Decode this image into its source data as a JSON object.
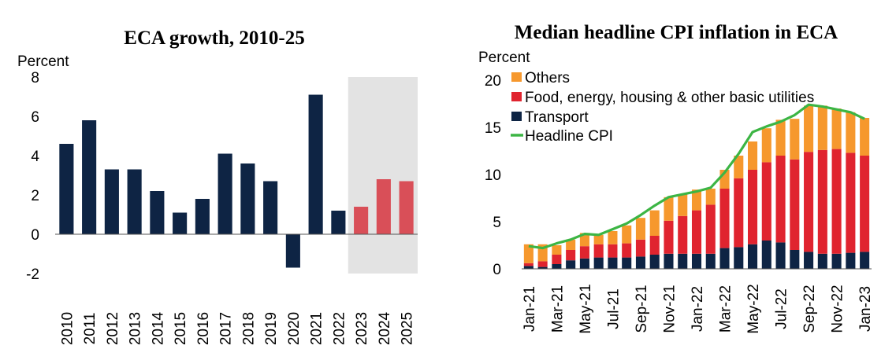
{
  "chart_data": [
    {
      "type": "bar",
      "title": "ECA growth, 2010-25",
      "ylabel": "Percent",
      "xlabel": "",
      "ylim": [
        -2,
        8
      ],
      "yticks": [
        "8",
        "6",
        "4",
        "2",
        "0",
        "-2"
      ],
      "categories": [
        "2010",
        "2011",
        "2012",
        "2013",
        "2014",
        "2015",
        "2016",
        "2017",
        "2018",
        "2019",
        "2020",
        "2021",
        "2022",
        "2023",
        "2024",
        "2025"
      ],
      "values": [
        4.6,
        5.8,
        3.3,
        3.3,
        2.2,
        1.1,
        1.8,
        4.1,
        3.6,
        2.7,
        -1.7,
        7.1,
        1.2,
        1.4,
        2.8,
        2.7
      ],
      "forecast_from": "2023",
      "colors": {
        "actual": "#0e2444",
        "forecast": "#d94f58",
        "shade": "#e3e3e3"
      }
    },
    {
      "type": "bar",
      "stacked": true,
      "title": "Median headline CPI inflation in ECA",
      "ylabel": "Percent",
      "xlabel": "",
      "ylim": [
        0,
        20
      ],
      "yticks": [
        "20",
        "15",
        "10",
        "5",
        "0"
      ],
      "months": [
        "Jan-21",
        "Feb-21",
        "Mar-21",
        "Apr-21",
        "May-21",
        "Jun-21",
        "Jul-21",
        "Aug-21",
        "Sep-21",
        "Oct-21",
        "Nov-21",
        "Dec-21",
        "Jan-22",
        "Feb-22",
        "Mar-22",
        "Apr-22",
        "May-22",
        "Jun-22",
        "Jul-22",
        "Aug-22",
        "Sep-22",
        "Oct-22",
        "Nov-22",
        "Dec-22",
        "Jan-23"
      ],
      "xtick_labels": [
        "Jan-21",
        "Mar-21",
        "May-21",
        "Jul-21",
        "Sep-21",
        "Nov-21",
        "Jan-22",
        "Mar-22",
        "May-22",
        "Jul-22",
        "Sep-22",
        "Nov-22",
        "Jan-23"
      ],
      "series": [
        {
          "name": "Transport",
          "color": "#0e2444",
          "values": [
            0.3,
            0.2,
            0.5,
            0.9,
            1.1,
            1.2,
            1.2,
            1.2,
            1.3,
            1.5,
            1.6,
            1.6,
            1.6,
            1.6,
            2.2,
            2.3,
            2.6,
            3.0,
            2.8,
            2.0,
            1.8,
            1.6,
            1.6,
            1.7,
            1.8
          ]
        },
        {
          "name": "Food, energy, housing & other basic utilities",
          "color": "#e0242f",
          "values": [
            0.3,
            0.6,
            1.0,
            1.1,
            1.3,
            1.4,
            1.4,
            1.5,
            1.8,
            2.0,
            3.5,
            4.0,
            4.6,
            5.2,
            6.3,
            7.3,
            7.9,
            8.3,
            9.2,
            9.6,
            10.6,
            11.0,
            11.1,
            10.6,
            10.2
          ]
        },
        {
          "name": "Others",
          "color": "#f6982d",
          "values": [
            2.0,
            1.8,
            1.0,
            1.1,
            1.4,
            1.0,
            1.4,
            1.9,
            2.3,
            2.7,
            2.5,
            2.3,
            2.2,
            1.7,
            2.0,
            2.4,
            3.0,
            3.6,
            3.8,
            4.3,
            4.9,
            4.7,
            4.3,
            4.3,
            4.0
          ]
        },
        {
          "name": "Headline CPI",
          "color": "#3cb544",
          "kind": "line",
          "values": [
            2.4,
            2.2,
            2.7,
            3.1,
            3.7,
            3.6,
            4.2,
            4.8,
            5.7,
            6.7,
            7.6,
            7.9,
            8.2,
            8.6,
            10.2,
            12.2,
            14.5,
            15.1,
            15.6,
            16.3,
            17.4,
            17.2,
            16.9,
            16.6,
            15.9
          ]
        }
      ]
    }
  ]
}
